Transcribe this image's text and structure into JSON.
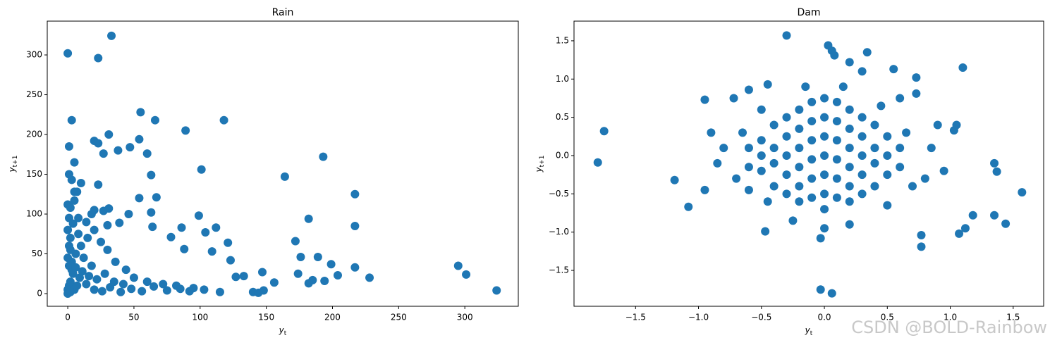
{
  "chart_data": [
    {
      "type": "scatter",
      "title": "Rain",
      "xlabel": "y_t",
      "ylabel": "y_t+1",
      "color": "#1f77b4",
      "xlim": [
        -15.5,
        340.4
      ],
      "ylim": [
        -15.9,
        342.5
      ],
      "xticks": [
        0,
        50,
        100,
        150,
        200,
        250,
        300
      ],
      "yticks": [
        0,
        50,
        100,
        150,
        200,
        250,
        300
      ],
      "x": [
        0,
        33,
        23,
        55,
        66,
        118,
        3,
        89,
        31,
        20,
        54,
        23,
        1,
        47,
        27,
        38,
        193,
        60,
        5,
        101,
        1,
        63,
        164,
        3,
        23,
        10,
        5,
        7,
        217,
        67,
        54,
        0,
        5,
        20,
        27,
        31,
        2,
        18,
        46,
        63,
        99,
        182,
        104,
        112,
        86,
        78,
        121,
        172,
        109,
        88,
        14,
        8,
        1,
        4,
        39,
        30,
        64,
        217,
        176,
        189,
        123,
        199,
        295,
        217,
        301,
        228,
        204,
        174,
        147,
        133,
        127,
        156,
        185,
        182,
        194,
        140,
        148,
        144,
        324,
        115,
        103,
        95,
        82,
        72,
        60,
        50,
        44,
        36,
        30,
        25,
        20,
        15,
        10,
        8,
        12,
        18,
        6,
        3,
        2,
        1,
        4,
        9,
        14,
        20,
        26,
        32,
        40,
        48,
        56,
        65,
        75,
        85,
        92,
        0,
        1,
        2,
        3,
        5,
        7,
        0,
        2,
        1,
        6,
        11,
        16,
        22,
        28,
        35,
        42,
        0,
        0,
        2
      ],
      "y": [
        302,
        324,
        296,
        228,
        218,
        218,
        218,
        205,
        200,
        192,
        194,
        189,
        185,
        184,
        176,
        180,
        172,
        176,
        165,
        156,
        150,
        149,
        147,
        143,
        137,
        139,
        128,
        128,
        125,
        121,
        120,
        112,
        117,
        105,
        104,
        107,
        108,
        100,
        100,
        102,
        98,
        94,
        77,
        83,
        83,
        71,
        64,
        66,
        53,
        56,
        90,
        95,
        95,
        88,
        89,
        86,
        84,
        85,
        46,
        46,
        42,
        37,
        35,
        33,
        24,
        20,
        23,
        25,
        27,
        22,
        21,
        14,
        17,
        13,
        16,
        2,
        4,
        1,
        4,
        2,
        5,
        7,
        10,
        12,
        15,
        20,
        30,
        40,
        55,
        65,
        80,
        70,
        60,
        75,
        45,
        35,
        50,
        40,
        70,
        60,
        25,
        20,
        12,
        5,
        3,
        8,
        2,
        6,
        3,
        9,
        4,
        6,
        3,
        5,
        10,
        15,
        30,
        5,
        10,
        0,
        2,
        35,
        33,
        28,
        22,
        18,
        25,
        15,
        12,
        80,
        45,
        55
      ]
    },
    {
      "type": "scatter",
      "title": "Dam",
      "xlabel": "y_t",
      "ylabel": "y_t+1",
      "color": "#1f77b4",
      "xlim": [
        -1.989,
        1.742
      ],
      "ylim": [
        -1.969,
        1.757
      ],
      "xticks": [
        {
          "value": -1.5,
          "label": "−1.5"
        },
        {
          "value": -1.0,
          "label": "−1.0"
        },
        {
          "value": -0.5,
          "label": "−0.5"
        },
        {
          "value": 0,
          "label": "0.0"
        },
        {
          "value": 0.5,
          "label": "0.5"
        },
        {
          "value": 1.0,
          "label": "1.0"
        },
        {
          "value": 1.5,
          "label": "1.5"
        }
      ],
      "yticks": [
        {
          "value": -1.5,
          "label": "−1.5"
        },
        {
          "value": -1.0,
          "label": "−1.0"
        },
        {
          "value": -0.5,
          "label": "−0.5"
        },
        {
          "value": 0,
          "label": "0.0"
        },
        {
          "value": 0.5,
          "label": "0.5"
        },
        {
          "value": 1.0,
          "label": "1.0"
        },
        {
          "value": 1.5,
          "label": "1.5"
        }
      ],
      "x": [
        -1.8,
        -1.75,
        -1.19,
        -1.08,
        -0.95,
        -0.95,
        -0.3,
        0.03,
        0.06,
        0.34,
        0.08,
        0.55,
        1.1,
        -0.03,
        0.06,
        0.77,
        1.07,
        1.18,
        1.35,
        1.44,
        1.57,
        1.35,
        1.37,
        1.03,
        1.05,
        0.73,
        0.73,
        -0.47,
        -0.03,
        0.77,
        1.12,
        -0.72,
        -0.6,
        -0.45,
        0.3,
        0.2,
        -0.5,
        -0.5,
        -0.5,
        -0.4,
        -0.4,
        -0.4,
        -0.4,
        -0.3,
        -0.3,
        -0.3,
        -0.3,
        -0.3,
        -0.2,
        -0.2,
        -0.2,
        -0.2,
        -0.2,
        -0.2,
        -0.1,
        -0.1,
        -0.1,
        -0.1,
        -0.1,
        -0.1,
        0,
        0,
        0,
        0,
        0,
        0,
        0,
        0.1,
        0.1,
        0.1,
        0.1,
        0.1,
        0.1,
        0.2,
        0.2,
        0.2,
        0.2,
        0.2,
        0.2,
        0.3,
        0.3,
        0.3,
        0.3,
        0.3,
        0.4,
        0.4,
        0.4,
        0.4,
        0.5,
        0.5,
        0.5,
        0.6,
        0.6,
        -0.6,
        -0.6,
        0.65,
        -0.65,
        -0.7,
        0.7,
        -0.8,
        0.85,
        0.8,
        -0.85,
        0.9,
        -0.5,
        0.45,
        -0.45,
        0.5,
        0.95,
        -0.9,
        0.15,
        -0.15,
        0,
        0.2,
        -0.25,
        0.6,
        -0.6
      ],
      "y": [
        -0.09,
        0.32,
        -0.32,
        -0.67,
        -0.45,
        0.73,
        1.57,
        1.44,
        1.37,
        1.35,
        1.31,
        1.13,
        1.15,
        -1.75,
        -1.8,
        -1.19,
        -1.02,
        -0.78,
        -0.78,
        -0.89,
        -0.48,
        -0.1,
        -0.21,
        0.33,
        0.4,
        1.02,
        0.81,
        -0.99,
        -1.08,
        -1.04,
        -0.95,
        0.75,
        0.86,
        0.93,
        1.1,
        1.22,
        0,
        0.2,
        -0.2,
        0.4,
        0.1,
        -0.1,
        -0.4,
        0.5,
        0.25,
        0,
        -0.25,
        -0.5,
        0.6,
        0.35,
        0.1,
        -0.15,
        -0.4,
        -0.6,
        0.7,
        0.45,
        0.2,
        -0.05,
        -0.3,
        -0.55,
        0.75,
        0.5,
        0.25,
        0,
        -0.25,
        -0.5,
        -0.7,
        0.7,
        0.45,
        0.2,
        -0.05,
        -0.3,
        -0.55,
        0.6,
        0.35,
        0.1,
        -0.15,
        -0.4,
        -0.6,
        0.5,
        0.25,
        0,
        -0.25,
        -0.5,
        0.4,
        0.1,
        -0.1,
        -0.4,
        0.25,
        0,
        -0.25,
        0.1,
        -0.15,
        0.1,
        -0.15,
        0.3,
        0.3,
        -0.3,
        -0.4,
        0.1,
        0.1,
        -0.3,
        -0.1,
        0.4,
        0.6,
        0.65,
        -0.6,
        -0.65,
        -0.2,
        0.3,
        0.9,
        0.9,
        -0.95,
        -0.9,
        -0.85,
        0.75,
        -0.45
      ]
    }
  ],
  "watermark": "CSDN @BOLD-Rainbow"
}
